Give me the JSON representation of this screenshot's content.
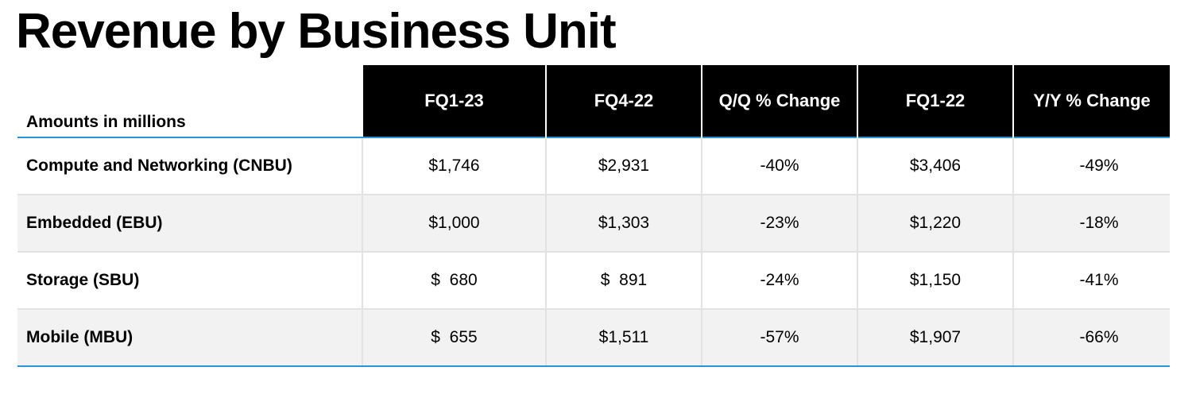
{
  "title": "Revenue by Business Unit",
  "table": {
    "unit_label": "Amounts in millions",
    "columns": [
      "FQ1-23",
      "FQ4-22",
      "Q/Q % Change",
      "FQ1-22",
      "Y/Y % Change"
    ],
    "rows": [
      {
        "name": "Compute and Networking (CNBU)",
        "values": [
          "$1,746",
          "$2,931",
          "-40%",
          "$3,406",
          "-49%"
        ]
      },
      {
        "name": "Embedded (EBU)",
        "values": [
          "$1,000",
          "$1,303",
          "-23%",
          "$1,220",
          "-18%"
        ]
      },
      {
        "name": "Storage (SBU)",
        "values": [
          "$  680",
          "$  891",
          "-24%",
          "$1,150",
          "-41%"
        ]
      },
      {
        "name": "Mobile (MBU)",
        "values": [
          "$  655",
          "$1,511",
          "-57%",
          "$1,907",
          "-66%"
        ]
      }
    ]
  }
}
